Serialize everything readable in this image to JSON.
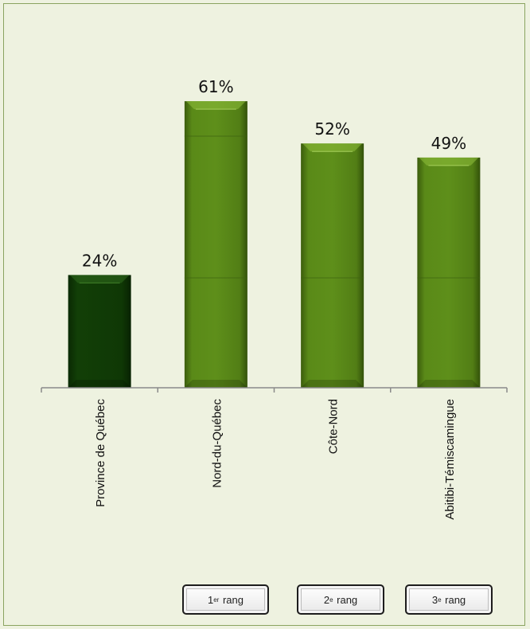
{
  "chart_data": {
    "type": "bar",
    "categories": [
      "Province de Québec",
      "Nord-du-Québec",
      "Côte-Nord",
      "Abitibi-Témiscamingue"
    ],
    "values": [
      24,
      61,
      52,
      49
    ],
    "value_labels": [
      "24%",
      "61%",
      "52%",
      "49%"
    ],
    "ylim": [
      0,
      70
    ],
    "grid": false,
    "legend": "none",
    "colors": {
      "highlight_bar": "#0e3a06",
      "bars": "#4f7a14",
      "axis": "#8a8a8a"
    }
  },
  "rank_badges": [
    {
      "num": "1",
      "suffix": "er",
      "word": "rang"
    },
    {
      "num": "2",
      "suffix": "e",
      "word": "rang"
    },
    {
      "num": "3",
      "suffix": "e",
      "word": "rang"
    }
  ]
}
